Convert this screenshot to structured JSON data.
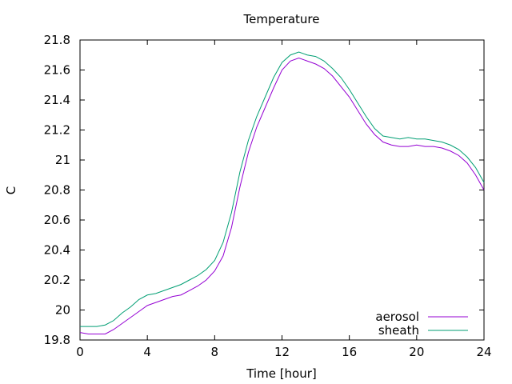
{
  "chart_data": {
    "type": "line",
    "title": "Temperature",
    "xlabel": "Time [hour]",
    "ylabel": "C",
    "xlim": [
      0,
      24
    ],
    "ylim": [
      19.8,
      21.8
    ],
    "xticks": [
      "0",
      "4",
      "8",
      "12",
      "16",
      "20",
      "24"
    ],
    "yticks": [
      "19.8",
      "20",
      "20.2",
      "20.4",
      "20.6",
      "20.8",
      "21",
      "21.2",
      "21.4",
      "21.6",
      "21.8"
    ],
    "grid": false,
    "legend_position": "bottom-right",
    "x": [
      0,
      0.5,
      1,
      1.5,
      2,
      2.5,
      3,
      3.5,
      4,
      4.5,
      5,
      5.5,
      6,
      6.5,
      7,
      7.5,
      8,
      8.5,
      9,
      9.5,
      10,
      10.5,
      11,
      11.5,
      12,
      12.5,
      13,
      13.5,
      14,
      14.5,
      15,
      15.5,
      16,
      16.5,
      17,
      17.5,
      18,
      18.5,
      19,
      19.5,
      20,
      20.5,
      21,
      21.5,
      22,
      22.5,
      23,
      23.5,
      24
    ],
    "series": [
      {
        "name": "aerosol",
        "color": "#9400d3",
        "values": [
          19.85,
          19.84,
          19.84,
          19.84,
          19.87,
          19.91,
          19.95,
          19.99,
          20.03,
          20.05,
          20.07,
          20.09,
          20.1,
          20.13,
          20.16,
          20.2,
          20.26,
          20.36,
          20.55,
          20.82,
          21.05,
          21.22,
          21.35,
          21.48,
          21.6,
          21.66,
          21.68,
          21.66,
          21.64,
          21.61,
          21.56,
          21.49,
          21.42,
          21.33,
          21.24,
          21.17,
          21.12,
          21.1,
          21.09,
          21.09,
          21.1,
          21.09,
          21.09,
          21.08,
          21.06,
          21.03,
          20.98,
          20.9,
          20.8
        ]
      },
      {
        "name": "sheath",
        "color": "#009e73",
        "values": [
          19.89,
          19.89,
          19.89,
          19.9,
          19.93,
          19.98,
          20.02,
          20.07,
          20.1,
          20.11,
          20.13,
          20.15,
          20.17,
          20.2,
          20.23,
          20.27,
          20.33,
          20.45,
          20.65,
          20.92,
          21.13,
          21.29,
          21.42,
          21.55,
          21.65,
          21.7,
          21.72,
          21.7,
          21.69,
          21.66,
          21.61,
          21.55,
          21.47,
          21.38,
          21.29,
          21.21,
          21.16,
          21.15,
          21.14,
          21.15,
          21.14,
          21.14,
          21.13,
          21.12,
          21.1,
          21.07,
          21.02,
          20.95,
          20.85
        ]
      }
    ]
  }
}
